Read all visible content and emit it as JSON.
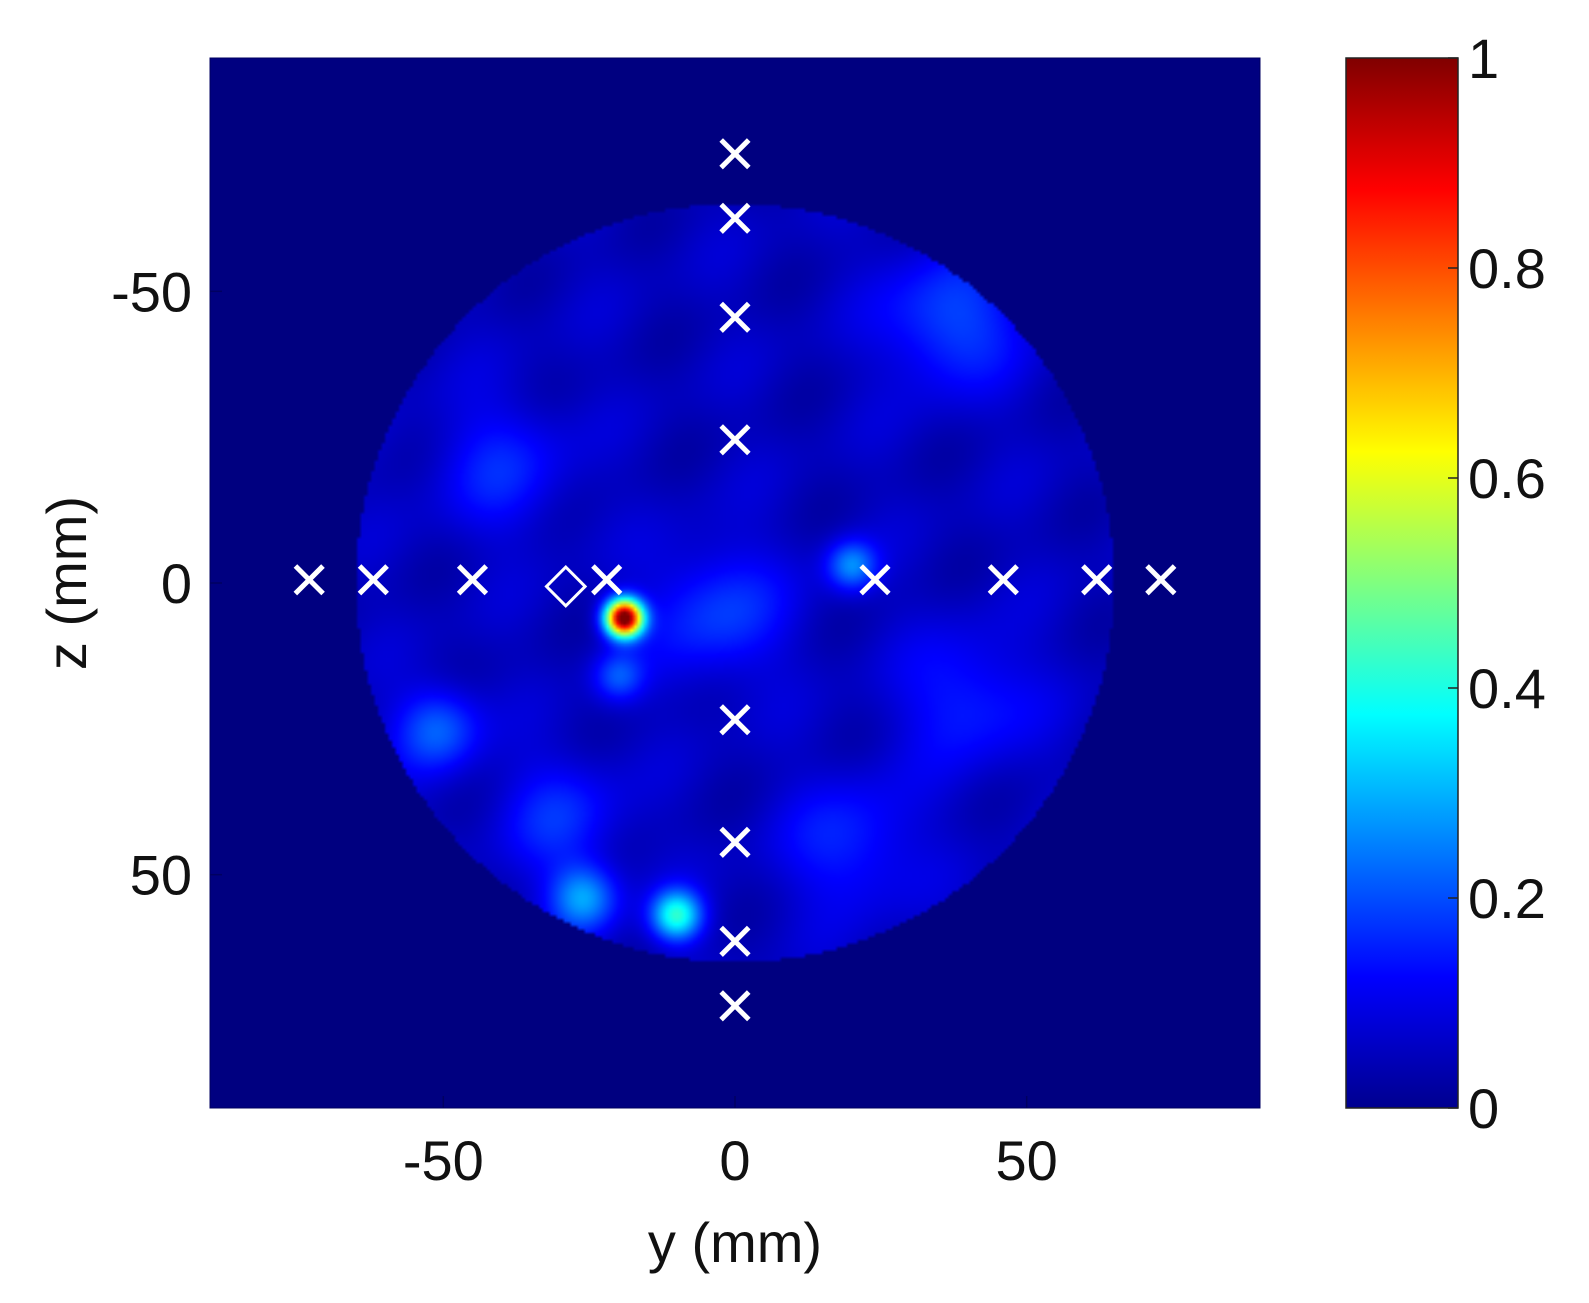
{
  "chart_data": {
    "type": "heatmap",
    "title": "",
    "xlabel": "y (mm)",
    "ylabel": "z (mm)",
    "xlim": [
      -90,
      90
    ],
    "ylim": [
      -90,
      90
    ],
    "y_axis_reversed": true,
    "x_ticks": [
      -50,
      0,
      50
    ],
    "y_ticks": [
      -50,
      0,
      50
    ],
    "x_tick_labels": [
      "-50",
      "0",
      "50"
    ],
    "y_tick_labels": [
      "-50",
      "0",
      "50"
    ],
    "colormap": "jet",
    "colorbar": {
      "range": [
        0,
        1
      ],
      "ticks": [
        0,
        0.2,
        0.4,
        0.6,
        0.8,
        1
      ],
      "tick_labels": [
        "0",
        "0.2",
        "0.4",
        "0.6",
        "0.8",
        "1"
      ]
    },
    "background_value": 0.0,
    "imaging_region": {
      "shape": "circle",
      "center": [
        0,
        0
      ],
      "radius": 65,
      "base_level": 0.06
    },
    "hotspots": [
      {
        "y": -19,
        "z": 6,
        "value": 1.0,
        "spread": 2.2
      },
      {
        "y": -10,
        "z": 57,
        "value": 0.35,
        "spread": 3.0
      },
      {
        "y": -26,
        "z": 54,
        "value": 0.22,
        "spread": 4.0
      },
      {
        "y": 20,
        "z": -3,
        "value": 0.2,
        "spread": 3.0
      },
      {
        "y": -51,
        "z": 25,
        "value": 0.16,
        "spread": 5.0
      },
      {
        "y": 37,
        "z": -45,
        "value": 0.14,
        "spread": 8.0
      },
      {
        "y": -3,
        "z": 5,
        "value": 0.12,
        "spread": 8.0
      },
      {
        "y": -20,
        "z": 16,
        "value": 0.14,
        "spread": 3.0
      },
      {
        "y": -30,
        "z": 40,
        "value": 0.1,
        "spread": 7.0
      },
      {
        "y": 40,
        "z": 20,
        "value": 0.1,
        "spread": 8.0
      },
      {
        "y": -40,
        "z": -20,
        "value": 0.09,
        "spread": 8.0
      },
      {
        "y": 20,
        "z": 45,
        "value": 0.1,
        "spread": 8.0
      }
    ],
    "antenna_markers": {
      "symbol": "×",
      "color": "#ffffff",
      "points": [
        {
          "y": 0,
          "z": -73
        },
        {
          "y": 0,
          "z": -62
        },
        {
          "y": 0,
          "z": -45
        },
        {
          "y": 0,
          "z": -24
        },
        {
          "y": 0,
          "z": 24
        },
        {
          "y": 0,
          "z": 45
        },
        {
          "y": 0,
          "z": 62
        },
        {
          "y": 0,
          "z": 73
        },
        {
          "y": -73,
          "z": 0
        },
        {
          "y": -62,
          "z": 0
        },
        {
          "y": -45,
          "z": 0
        },
        {
          "y": -22,
          "z": 0
        },
        {
          "y": 24,
          "z": 0
        },
        {
          "y": 46,
          "z": 0
        },
        {
          "y": 62,
          "z": 0
        },
        {
          "y": 73,
          "z": 0
        }
      ]
    },
    "diamond_marker": {
      "symbol": "◇",
      "color": "#ffffff",
      "y": -29,
      "z": 0
    }
  }
}
